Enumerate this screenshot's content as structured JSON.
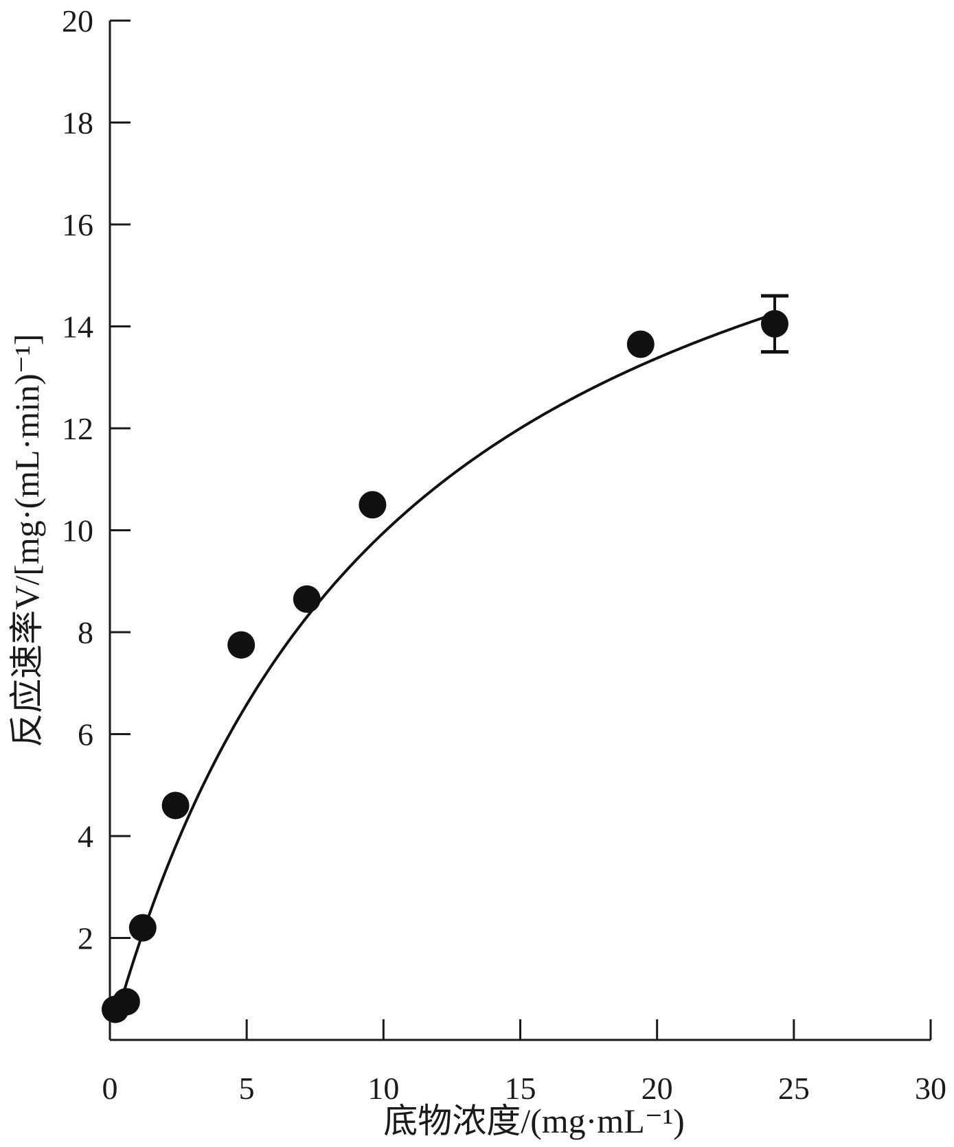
{
  "chart_data": {
    "type": "scatter",
    "xlabel": "底物浓度/(mg·mL⁻¹)",
    "ylabel": "反应速率V/[mg·(mL·min)⁻¹]",
    "xlim": [
      0,
      30
    ],
    "ylim": [
      0,
      20
    ],
    "x_ticks": [
      0,
      5,
      10,
      15,
      20,
      25,
      30
    ],
    "y_ticks": [
      2,
      4,
      6,
      8,
      10,
      12,
      14,
      16,
      18,
      20
    ],
    "x_tick_labels": [
      "0",
      "5",
      "10",
      "15",
      "20",
      "25",
      "30"
    ],
    "y_tick_labels": [
      "2",
      "4",
      "6",
      "8",
      "10",
      "12",
      "14",
      "16",
      "18",
      "20"
    ],
    "grid": false,
    "series": [
      {
        "x": [
          0.2,
          0.6,
          1.2,
          2.4,
          4.8,
          7.2,
          9.6,
          19.4,
          24.3
        ],
        "y": [
          0.6,
          0.75,
          2.2,
          4.6,
          7.75,
          8.65,
          10.5,
          13.65,
          14.05
        ],
        "error": [
          null,
          null,
          null,
          null,
          null,
          null,
          null,
          null,
          0.55
        ]
      }
    ],
    "fit_curve": {
      "model": "michaelis-menten",
      "vmax": 20.4,
      "km": 10.5
    },
    "colors": {
      "marker": "#111111",
      "line": "#111111",
      "axis": "#1a1a1a"
    }
  }
}
